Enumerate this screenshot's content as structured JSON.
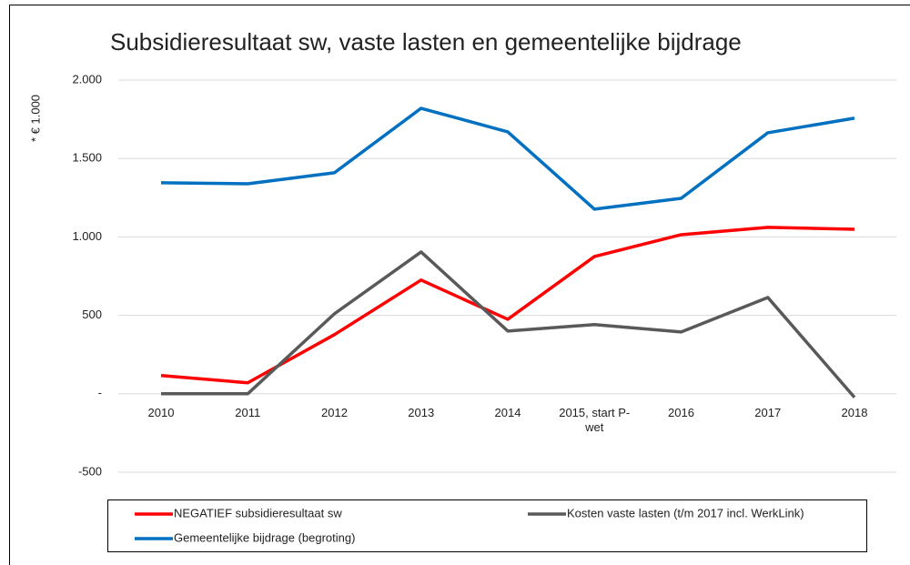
{
  "chart_data": {
    "type": "line",
    "title": "Subsidieresultaat sw, vaste lasten en gemeentelijke bijdrage",
    "y_label": "* € 1.000",
    "categories": [
      "2010",
      "2011",
      "2012",
      "2013",
      "2014",
      "2015, start P-wet",
      "2016",
      "2017",
      "2018"
    ],
    "series": [
      {
        "name": "NEGATIEF subsidieresultaat sw",
        "color": "#ff0000",
        "values": [
          116,
          70,
          377,
          725,
          475,
          875,
          1014,
          1061,
          1049
        ]
      },
      {
        "name": "Kosten vaste lasten (t/m 2017 incl. WerkLink)",
        "color": "#595959",
        "values": [
          0,
          0,
          510,
          904,
          400,
          441,
          394,
          614,
          -23
        ]
      },
      {
        "name": "Gemeentelijke bijdrage (begroting)",
        "color": "#0070c0",
        "values": [
          1345,
          1339,
          1409,
          1820,
          1670,
          1177,
          1246,
          1664,
          1757
        ]
      }
    ],
    "ylim": [
      -500,
      2000
    ],
    "yticks": [
      -500,
      {
        "value": 0,
        "label": "-"
      },
      500,
      {
        "value": 1000,
        "label": "1.000"
      },
      {
        "value": 1500,
        "label": "1.500"
      },
      {
        "value": 2000,
        "label": "2.000"
      }
    ],
    "grid": true,
    "legend": "bottom"
  }
}
